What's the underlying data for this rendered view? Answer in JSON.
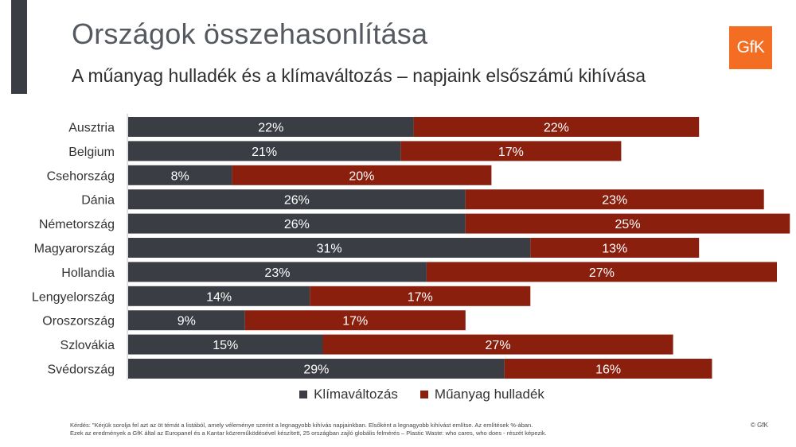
{
  "header": {
    "title": "Országok összehasonlítása",
    "subtitle": "A műanyag hulladék és a klímaváltozás – napjaink elsőszámú kihívása",
    "logo_text": "GfK"
  },
  "colors": {
    "series1": "#3b3d44",
    "series2": "#8a1f0e",
    "logo": "#f36e22",
    "accent_bar": "#3b3d44"
  },
  "chart_data": {
    "type": "bar",
    "orientation": "horizontal",
    "stacked": true,
    "categories": [
      "Ausztria",
      "Belgium",
      "Csehország",
      "Dánia",
      "Németország",
      "Magyarország",
      "Hollandia",
      "Lengyelország",
      "Oroszország",
      "Szlovákia",
      "Svédország"
    ],
    "series": [
      {
        "name": "Klímaváltozás",
        "values": [
          22,
          21,
          8,
          26,
          26,
          31,
          23,
          14,
          9,
          15,
          29
        ],
        "labels": [
          "22%",
          "21%",
          "8%",
          "26%",
          "26%",
          "31%",
          "23%",
          "14%",
          "9%",
          "15%",
          "29%"
        ]
      },
      {
        "name": "Műanyag hulladék",
        "values": [
          22,
          17,
          20,
          23,
          25,
          13,
          27,
          17,
          17,
          27,
          16
        ],
        "labels": [
          "22%",
          "17%",
          "20%",
          "23%",
          "25%",
          "13%",
          "27%",
          "17%",
          "17%",
          "27%",
          "16%"
        ]
      }
    ],
    "unit": "%",
    "legend_position": "bottom",
    "grid": false
  },
  "legend": {
    "items": [
      "Klímaváltozás",
      "Műanyag hulladék"
    ]
  },
  "footnote": {
    "line1": "Kérdés: \"Kérjük sorolja fel azt az öt témát a listából, amely véleménye szerint a legnagyobb kihívás napjainkban. Elsőként a legnagyobb kihívást említse. Az említések %-ában.",
    "line2": "Ezek az eredmények a GfK által az Europanel és a Kantar közreműködésével készített, 25 országban zajló globális felmérés – Plastic Waste: who cares, who does - részét képezik."
  },
  "copyright": "© GfK"
}
